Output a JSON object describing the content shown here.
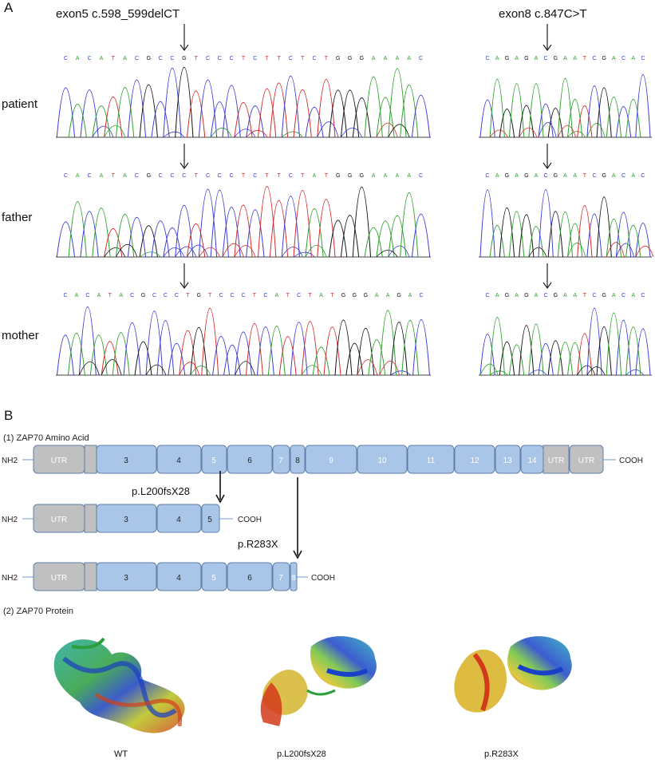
{
  "panel_a": {
    "letter": "A",
    "mut1": "exon5  c.598_599delCT",
    "mut2": "exon8  c.847C>T",
    "people": [
      "patient",
      "father",
      "mother"
    ],
    "seq_left": [
      "CACATACGCCGTCCCTCTTCTCTGGGAAAAC",
      "CACATACGCCCTCCCTCTTCTATGGGAAAAC",
      "CACATACGCCCTGTCCCTCATCTATGGGAAGAC"
    ],
    "seq_right": [
      "CAGAGACGAATCGACAC",
      "CAGAGACGAATCGACAC",
      "CAGAGACGAATCGACAC"
    ],
    "base_colors": {
      "A": "#2ca02c",
      "C": "#3a3ad6",
      "G": "#111111",
      "T": "#d62728"
    }
  },
  "panel_b": {
    "letter": "B",
    "sub1": "(1) ZAP70 Amino Acid",
    "sub2": "(2) ZAP70 Protein",
    "nh2": "NH2",
    "cooh": "COOH",
    "utr": "UTR",
    "wt_exons": [
      "3",
      "4",
      "5",
      "6",
      "7",
      "8",
      "9",
      "10",
      "11",
      "12",
      "13",
      "14"
    ],
    "mut1_label": "p.L200fsX28",
    "mut1_exons": [
      "3",
      "4",
      "5"
    ],
    "mut2_label": "p.R283X",
    "mut2_exons": [
      "3",
      "4",
      "5",
      "6",
      "7",
      "8"
    ],
    "proteins": [
      "WT",
      "p.L200fsX28",
      "p.R283X"
    ],
    "colors": {
      "exon": "#a9c6e8",
      "exon_border": "#5f7fa8",
      "utr": "#c0c0c0",
      "line": "#6b9bd1"
    }
  }
}
